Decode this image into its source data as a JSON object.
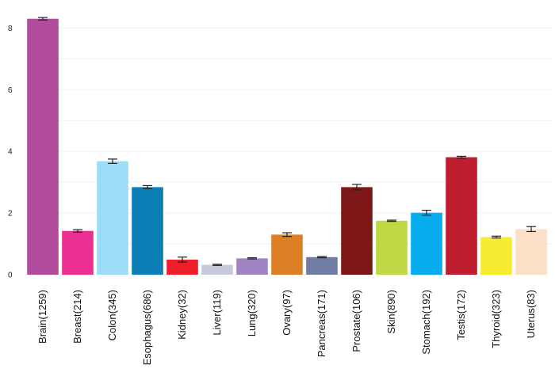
{
  "chart_data": {
    "type": "bar",
    "title": "",
    "xlabel": "",
    "ylabel": "",
    "ylim": [
      0,
      8.6
    ],
    "yticks": [
      0,
      2,
      4,
      6,
      8
    ],
    "grid": true,
    "error_bars": true,
    "categories": [
      "Brain(1259)",
      "Breast(214)",
      "Colon(345)",
      "Esophagus(686)",
      "Kidney(32)",
      "Liver(119)",
      "Lung(320)",
      "Ovary(97)",
      "Pancreas(171)",
      "Prostate(106)",
      "Skin(890)",
      "Stomach(192)",
      "Testis(172)",
      "Thyroid(323)",
      "Uterus(83)"
    ],
    "values": [
      8.3,
      1.42,
      3.68,
      2.84,
      0.49,
      0.32,
      0.53,
      1.3,
      0.57,
      2.84,
      1.75,
      2.01,
      3.81,
      1.22,
      1.48
    ],
    "errors": [
      0.04,
      0.04,
      0.07,
      0.05,
      0.08,
      0.02,
      0.02,
      0.06,
      0.02,
      0.09,
      0.02,
      0.08,
      0.03,
      0.03,
      0.08
    ],
    "colors": [
      "#b24c9d",
      "#ec2f93",
      "#9ddcf8",
      "#0b7fb6",
      "#ee1f2b",
      "#c9c9dd",
      "#a184c2",
      "#dd7f25",
      "#6f7ca4",
      "#7e1818",
      "#bfd945",
      "#08adf0",
      "#be1e2d",
      "#f8ec32",
      "#fbe0c7"
    ]
  }
}
